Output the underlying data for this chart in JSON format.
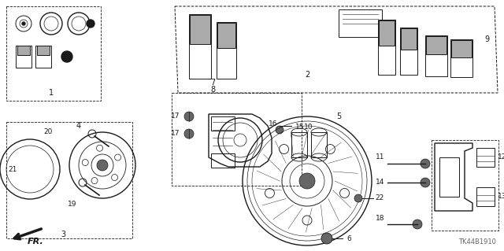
{
  "bg_color": "#ffffff",
  "line_color": "#1a1a1a",
  "gray_color": "#666666",
  "light_gray": "#aaaaaa",
  "part_number_label": "TK44B1910",
  "fr_label": "FR.",
  "fig_width": 6.4,
  "fig_height": 3.19,
  "dpi": 100
}
